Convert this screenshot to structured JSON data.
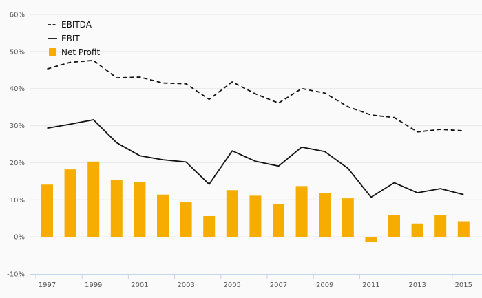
{
  "chart_data": {
    "type": "bar",
    "title": "",
    "xlabel": "",
    "ylabel": "",
    "categories": [
      "1997",
      "1998",
      "1999",
      "2000",
      "2001",
      "2002",
      "2003",
      "2004",
      "2005",
      "2006",
      "2007",
      "2008",
      "2009",
      "2010",
      "2011",
      "2012",
      "2013",
      "2014",
      "2015"
    ],
    "x_tick_labels": [
      "1997",
      "1999",
      "2001",
      "2003",
      "2005",
      "2007",
      "2009",
      "2011",
      "2013",
      "2015"
    ],
    "y_tick_labels": [
      "60%",
      "50%",
      "40%",
      "30%",
      "20%",
      "10%",
      "0%",
      "-10%"
    ],
    "y_ticks": [
      60,
      50,
      40,
      30,
      20,
      10,
      0,
      -10
    ],
    "ylim": [
      -10,
      60
    ],
    "grid": true,
    "legend_position": "top-left",
    "series": [
      {
        "name": "EBITDA",
        "type": "line",
        "style": "dashed",
        "color": "#111111",
        "values": [
          45.3,
          47.1,
          47.6,
          42.9,
          43.1,
          41.5,
          41.3,
          37.1,
          41.8,
          38.6,
          36.1,
          40.0,
          38.8,
          35.1,
          32.9,
          32.2,
          28.3,
          29.0,
          28.6
        ]
      },
      {
        "name": "EBIT",
        "type": "line",
        "style": "solid",
        "color": "#111111",
        "values": [
          29.3,
          30.4,
          31.6,
          25.4,
          21.9,
          20.8,
          20.2,
          14.2,
          23.2,
          20.4,
          19.1,
          24.2,
          23.0,
          18.5,
          10.7,
          14.6,
          11.9,
          13.0,
          11.4
        ]
      },
      {
        "name": "Net Profit",
        "type": "bar",
        "color": "#f7ac00",
        "values": [
          14.1,
          18.2,
          20.3,
          15.3,
          14.8,
          11.4,
          9.3,
          5.6,
          12.6,
          11.1,
          8.8,
          13.7,
          11.9,
          10.4,
          -1.4,
          5.9,
          3.6,
          5.9,
          4.2
        ]
      }
    ]
  }
}
